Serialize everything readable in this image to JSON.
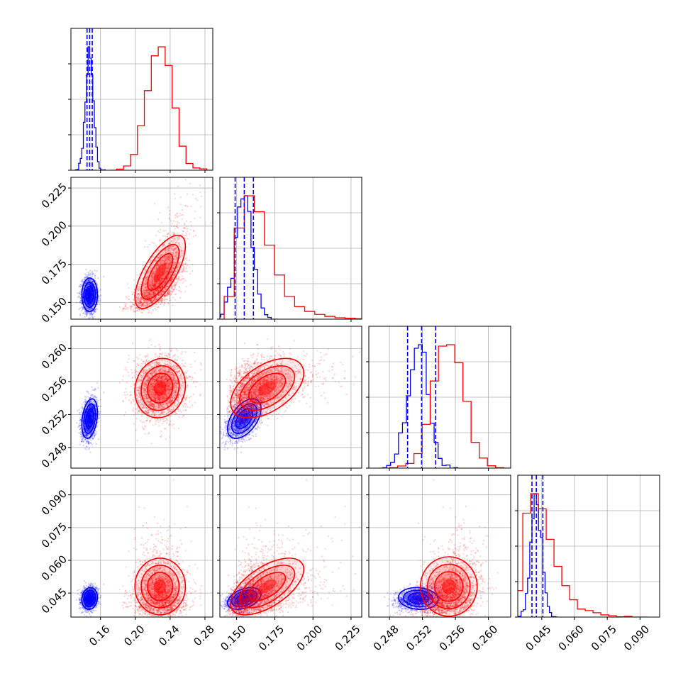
{
  "chart_data": {
    "type": "corner",
    "title": "",
    "colors": {
      "series_a": "#0000ff",
      "series_b": "#ff0000",
      "grid": "#b0b0b0"
    },
    "grid": true,
    "parameters": [
      {
        "range": [
          0.126,
          0.289
        ],
        "ticks": [
          0.16,
          0.2,
          0.24,
          0.28
        ],
        "tick_labels": [
          "0.16",
          "0.20",
          "0.24",
          "0.28"
        ]
      },
      {
        "range": [
          0.139,
          0.232
        ],
        "ticks": [
          0.15,
          0.175,
          0.2,
          0.225
        ],
        "tick_labels": [
          "0.150",
          "0.175",
          "0.200",
          "0.225"
        ]
      },
      {
        "range": [
          0.2455,
          0.2627
        ],
        "ticks": [
          0.248,
          0.252,
          0.256,
          0.26
        ],
        "tick_labels": [
          "0.248",
          "0.252",
          "0.256",
          "0.260"
        ]
      },
      {
        "range": [
          0.034,
          0.099
        ],
        "ticks": [
          0.045,
          0.06,
          0.075,
          0.09
        ],
        "tick_labels": [
          "0.045",
          "0.060",
          "0.075",
          "0.090"
        ]
      }
    ],
    "series": [
      {
        "key": "series_a",
        "color": "#0000ff",
        "means": [
          0.1475,
          0.155,
          0.2515,
          0.0425
        ],
        "sigmas": [
          0.0045,
          0.0055,
          0.0012,
          0.0025
        ],
        "correlations": [
          [
            1,
            0,
            0.3,
            0.1
          ],
          [
            0,
            1,
            0.5,
            0.4
          ],
          [
            0.3,
            0.5,
            1,
            -0.1
          ],
          [
            0.1,
            0.4,
            -0.1,
            1
          ]
        ],
        "quantiles": [
          [
            0.1445,
            0.1475,
            0.1505
          ],
          [
            0.149,
            0.155,
            0.161
          ],
          [
            0.2502,
            0.2519,
            0.2536
          ],
          [
            0.0405,
            0.0425,
            0.0455
          ]
        ],
        "hist_shape": "flat"
      },
      {
        "key": "series_b",
        "color": "#ff0000",
        "means": [
          0.2285,
          0.17,
          0.2552,
          0.048
        ],
        "sigmas": [
          0.0145,
          0.012,
          0.0018,
          0.0065
        ],
        "correlations": [
          [
            1,
            0.7,
            0.1,
            0.0
          ],
          [
            0.7,
            1,
            0.5,
            0.6
          ],
          [
            0.1,
            0.5,
            1,
            0.0
          ],
          [
            0.0,
            0.6,
            0.0,
            1
          ]
        ],
        "hist_shape": "skewed"
      }
    ]
  }
}
